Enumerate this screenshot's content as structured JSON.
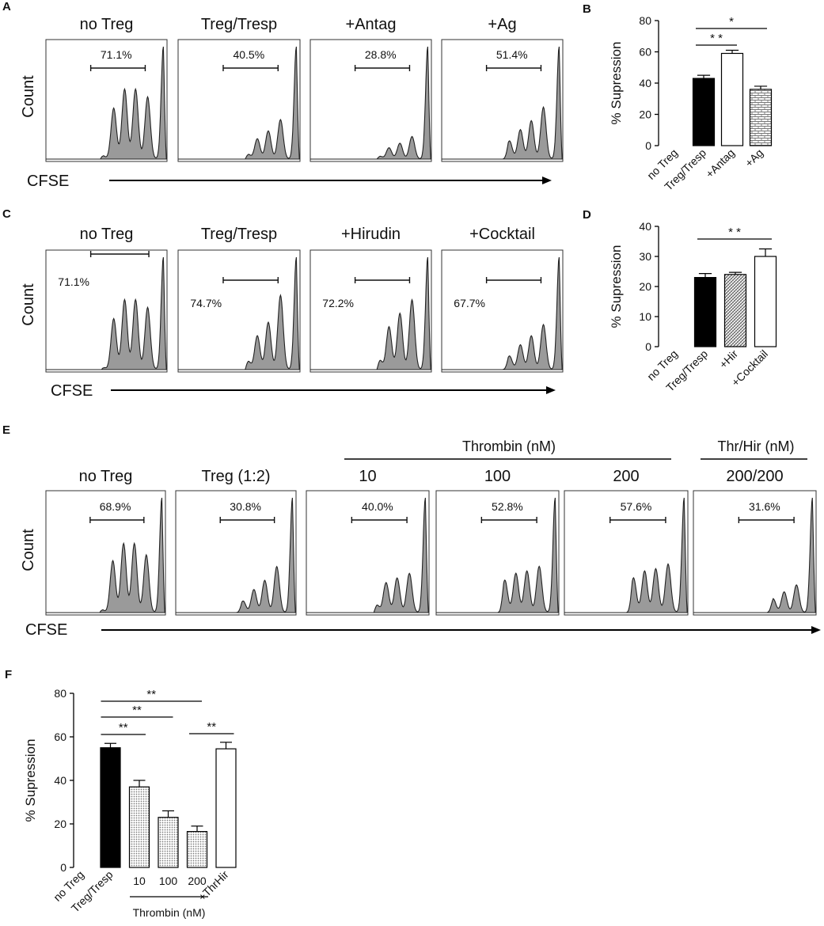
{
  "chart_data": [
    {
      "panel": "A",
      "type": "histogram",
      "ylabel": "Count",
      "xlabel": "CFSE",
      "plots": [
        {
          "title": "no Treg",
          "gate": "71.1%",
          "peaks": [
            0.1,
            0.45,
            0.62,
            0.62,
            0.55,
            1.0
          ]
        },
        {
          "title": "Treg/Tresp",
          "gate": "40.5%",
          "peaks": [
            0.04,
            0.1,
            0.18,
            0.25,
            0.35,
            1.0
          ]
        },
        {
          "title": "+Antag",
          "gate": "28.8%",
          "peaks": [
            0.03,
            0.06,
            0.1,
            0.14,
            0.2,
            1.0
          ]
        },
        {
          "title": "+Ag",
          "gate": "51.4%",
          "peaks": [
            0.06,
            0.16,
            0.26,
            0.34,
            0.46,
            1.0
          ]
        }
      ]
    },
    {
      "panel": "B",
      "type": "bar",
      "ylabel": "% Supression",
      "ylim": [
        0,
        80
      ],
      "yticks": [
        0,
        20,
        40,
        60,
        80
      ],
      "categories": [
        "no Treg",
        "Treg/Tresp",
        "+Antag",
        "+Ag"
      ],
      "values": [
        0,
        43,
        59,
        36
      ],
      "errors": [
        0,
        2,
        2,
        2
      ],
      "fills": [
        "none",
        "black",
        "white",
        "brick"
      ],
      "significance": [
        {
          "from": 1,
          "to": 3,
          "label": "*"
        },
        {
          "from": 1,
          "to": 2,
          "label": "* *"
        }
      ]
    },
    {
      "panel": "C",
      "type": "histogram",
      "ylabel": "Count",
      "xlabel": "CFSE",
      "plots": [
        {
          "title": "no Treg",
          "gate": "71.1%",
          "peaks": [
            0.1,
            0.45,
            0.62,
            0.62,
            0.55,
            1.0
          ]
        },
        {
          "title": "Treg/Tresp",
          "gate": "74.7%",
          "peaks": [
            0.05,
            0.18,
            0.3,
            0.42,
            0.66,
            1.0
          ]
        },
        {
          "title": "+Hirudin",
          "gate": "72.2%",
          "peaks": [
            0.05,
            0.2,
            0.38,
            0.5,
            0.62,
            1.0
          ]
        },
        {
          "title": "+Cocktail",
          "gate": "67.7%",
          "peaks": [
            0.04,
            0.12,
            0.22,
            0.3,
            0.4,
            1.0
          ]
        }
      ]
    },
    {
      "panel": "D",
      "type": "bar",
      "ylabel": "% Supression",
      "ylim": [
        0,
        40
      ],
      "yticks": [
        0,
        10,
        20,
        30,
        40
      ],
      "categories": [
        "no Treg",
        "Treg/Tresp",
        "+Hir",
        "+Cocktail"
      ],
      "values": [
        0,
        23,
        24,
        30
      ],
      "errors": [
        0,
        1.3,
        0.7,
        2.5
      ],
      "fills": [
        "none",
        "black",
        "hatch",
        "white"
      ],
      "significance": [
        {
          "from": 1,
          "to": 3,
          "label": "* *"
        }
      ]
    },
    {
      "panel": "E",
      "type": "histogram",
      "ylabel": "Count",
      "xlabel": "CFSE",
      "group_labels": [
        {
          "label": "Thrombin (nM)",
          "plots": [
            2,
            4
          ]
        },
        {
          "label": "Thr/Hir (nM)",
          "plots": [
            5,
            5
          ]
        }
      ],
      "plots": [
        {
          "title": "no Treg",
          "gate": "68.9%",
          "peaks": [
            0.08,
            0.45,
            0.6,
            0.6,
            0.5,
            1.0
          ]
        },
        {
          "title": "Treg (1:2)",
          "gate": "30.8%",
          "peaks": [
            0.04,
            0.1,
            0.2,
            0.28,
            0.4,
            1.0
          ]
        },
        {
          "title": "10",
          "gate": "40.0%",
          "peaks": [
            0.05,
            0.16,
            0.26,
            0.3,
            0.34,
            1.0
          ]
        },
        {
          "title": "100",
          "gate": "52.8%",
          "peaks": [
            0.08,
            0.28,
            0.34,
            0.36,
            0.4,
            1.0
          ]
        },
        {
          "title": "200",
          "gate": "57.6%",
          "peaks": [
            0.08,
            0.3,
            0.36,
            0.38,
            0.42,
            1.0
          ]
        },
        {
          "title": "200/200",
          "gate": "31.6%",
          "peaks": [
            0.03,
            0.08,
            0.12,
            0.18,
            0.24,
            1.0
          ]
        }
      ]
    },
    {
      "panel": "F",
      "type": "bar",
      "ylabel": "% Supression",
      "ylim": [
        0,
        80
      ],
      "yticks": [
        0,
        20,
        40,
        60,
        80
      ],
      "categories": [
        "no Treg",
        "Treg/Tresp",
        "10",
        "100",
        "200",
        "+ThrHir"
      ],
      "category_group": {
        "label": "Thrombin (nM)",
        "members": [
          2,
          4
        ]
      },
      "values": [
        0,
        55,
        37,
        23,
        16.5,
        54.5
      ],
      "errors": [
        0,
        2,
        3,
        3,
        2.5,
        3
      ],
      "fills": [
        "none",
        "black",
        "dots",
        "dots",
        "dots",
        "white"
      ],
      "significance": [
        {
          "from": 1,
          "to": 4,
          "label": "**"
        },
        {
          "from": 1,
          "to": 3,
          "label": "**"
        },
        {
          "from": 1,
          "to": 2,
          "label": "**"
        },
        {
          "from": 4,
          "to": 5,
          "label": "**"
        }
      ]
    }
  ]
}
